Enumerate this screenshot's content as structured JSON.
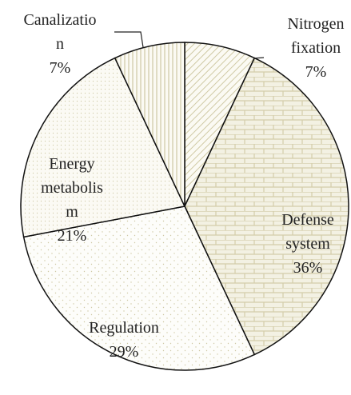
{
  "chart_data": {
    "type": "pie",
    "categories": [
      "Nitrogen\nfixation",
      "Defense\nsystem",
      "Regulation",
      "Energy\nmetabolis\nm",
      "Canalizatio\nn"
    ],
    "values": [
      7,
      36,
      29,
      21,
      7
    ],
    "value_labels": [
      "7%",
      "36%",
      "29%",
      "21%",
      "7%"
    ]
  }
}
